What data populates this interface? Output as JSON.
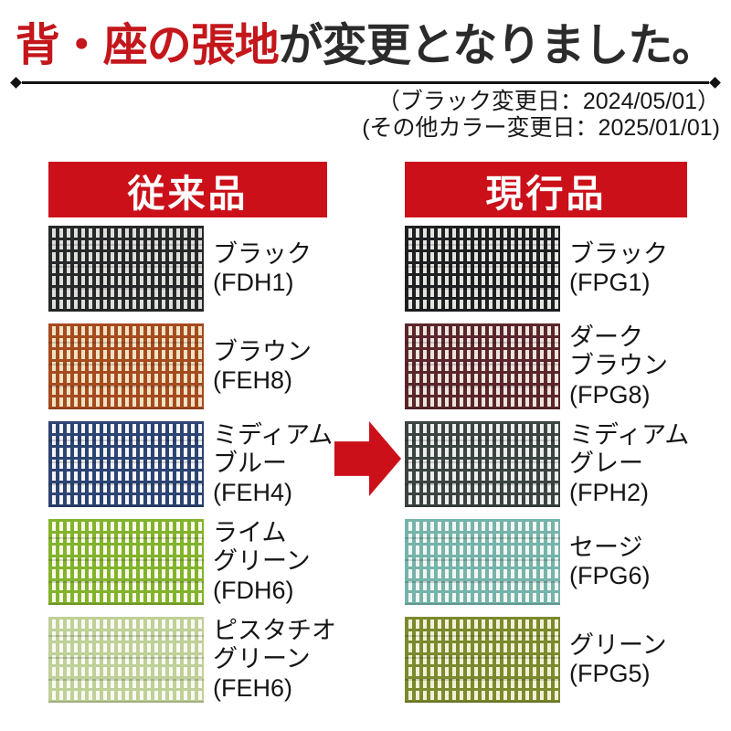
{
  "colors": {
    "accent_red": "#cb1019",
    "title_highlight": "#c3171c",
    "heading_text": "#2b2b2b",
    "label_text": "#141414",
    "header_text": "#ffffff",
    "divider": "#121212",
    "page_bg": "#ffffff"
  },
  "title": {
    "highlight": "背・座の張地",
    "rest": "が変更となりました。"
  },
  "change_dates": {
    "black_date": "（ブラック変更日：2024/05/01）",
    "other_colors_date": "(その他カラー変更日：2025/01/01)"
  },
  "arrow": {
    "direction": "right",
    "meaning": "従来品から現行品への変更"
  },
  "columns": {
    "before": {
      "header": "従来品",
      "rows": [
        {
          "name": "ブラック",
          "code": "FDH1",
          "lines": [
            "ブラック",
            "(FDH1)"
          ],
          "fabric_hex": "#26282a",
          "hole_hex": "#dededa"
        },
        {
          "name": "ブラウン",
          "code": "FEH8",
          "lines": [
            "ブラウン",
            "(FEH8)"
          ],
          "fabric_hex": "#a64a20",
          "hole_hex": "#f1e3c2"
        },
        {
          "name": "ミディアムブルー",
          "code": "FEH4",
          "lines": [
            "ミディアム",
            "ブルー",
            "(FEH4)"
          ],
          "fabric_hex": "#2c4373",
          "hole_hex": "#f3f5f6"
        },
        {
          "name": "ライムグリーン",
          "code": "FDH6",
          "lines": [
            "ライム",
            "グリーン",
            "(FDH6)"
          ],
          "fabric_hex": "#83b32c",
          "hole_hex": "#f7faea"
        },
        {
          "name": "ピスタチオグリーン",
          "code": "FEH6",
          "lines": [
            "ピスタチオ",
            "グリーン",
            "(FEH6)"
          ],
          "fabric_hex": "#bfd098",
          "hole_hex": "#f9faf0"
        }
      ]
    },
    "after": {
      "header": "現行品",
      "rows": [
        {
          "name": "ブラック",
          "code": "FPG1",
          "lines": [
            "ブラック",
            "(FPG1)"
          ],
          "fabric_hex": "#1e1f21",
          "hole_hex": "#e4e4e0"
        },
        {
          "name": "ダークブラウン",
          "code": "FPG8",
          "lines": [
            "ダーク",
            "ブラウン",
            "(FPG8)"
          ],
          "fabric_hex": "#5a262b",
          "hole_hex": "#eee4de"
        },
        {
          "name": "ミディアムグレー",
          "code": "FPH2",
          "lines": [
            "ミディアム",
            "グレー",
            "(FPH2)"
          ],
          "fabric_hex": "#3b4442",
          "hole_hex": "#edefec"
        },
        {
          "name": "セージ",
          "code": "FPG6",
          "lines": [
            "セージ",
            "(FPG6)"
          ],
          "fabric_hex": "#76b3ab",
          "hole_hex": "#f1f8f1"
        },
        {
          "name": "グリーン",
          "code": "FPG5",
          "lines": [
            "グリーン",
            "(FPG5)"
          ],
          "fabric_hex": "#7b8a2d",
          "hole_hex": "#f2f1d6"
        }
      ]
    }
  }
}
